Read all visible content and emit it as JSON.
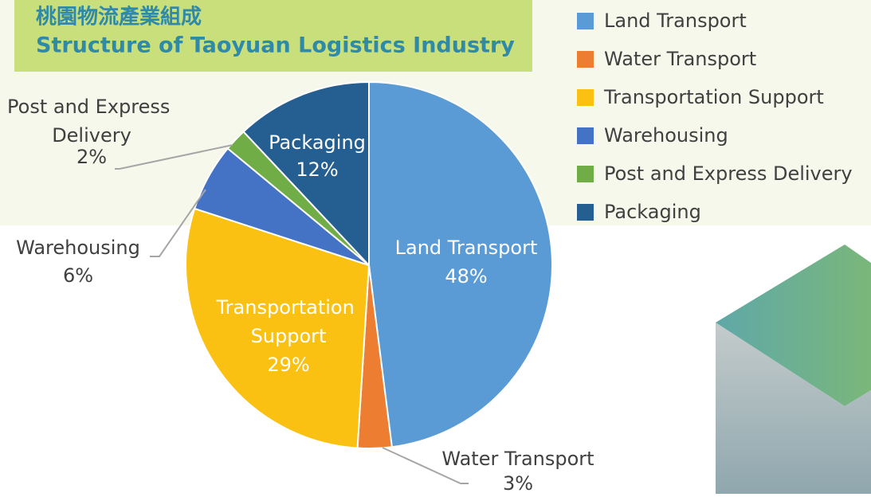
{
  "chart_data": {
    "type": "pie",
    "title": "桃園物流產業組成",
    "subtitle": "Structure of Taoyuan Logistics Industry",
    "categories": [
      "Land Transport",
      "Water Transport",
      "Transportation Support",
      "Warehousing",
      "Post and Express Delivery",
      "Packaging"
    ],
    "values": [
      48,
      3,
      29,
      6,
      2,
      12
    ],
    "value_labels": [
      "48%",
      "3%",
      "29%",
      "6%",
      "2%",
      "12%"
    ],
    "colors": [
      "#5b9bd5",
      "#ed7d31",
      "#fbc112",
      "#4472c4",
      "#70ad47",
      "#255e91"
    ],
    "legend": "top-right"
  }
}
